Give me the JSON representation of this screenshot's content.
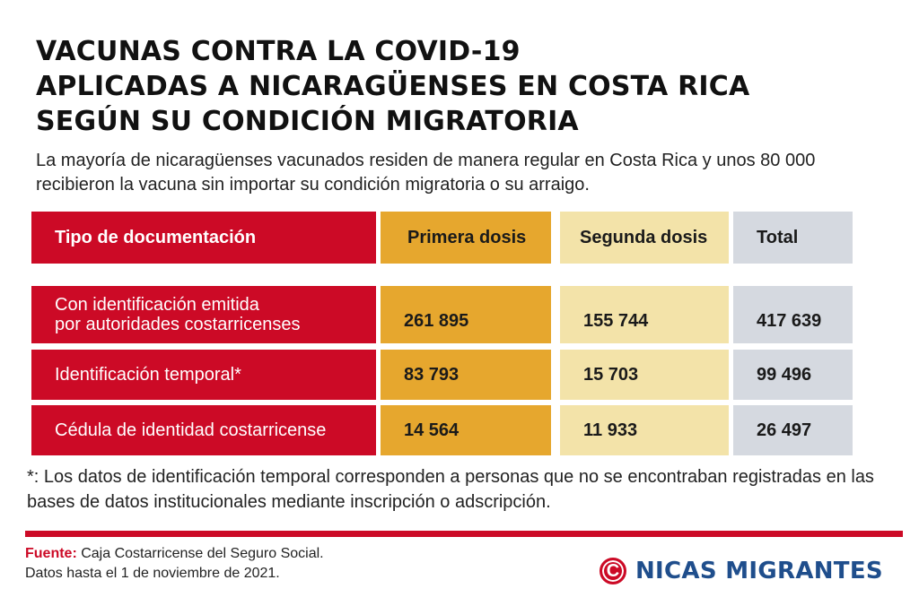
{
  "title_lines": [
    "VACUNAS CONTRA LA COVID-19",
    "APLICADAS A NICARAGÜENSES EN COSTA RICA",
    "SEGÚN SU CONDICIÓN MIGRATORIA"
  ],
  "subtitle": "La mayoría de nicaragüenses vacunados residen de manera regular en Costa Rica y unos 80 000 recibieron la vacuna sin importar su condición migratoria o su arraigo.",
  "colors": {
    "red": "#cc0a26",
    "primera": "#e6a72e",
    "segunda": "#f3e3a9",
    "total": "#d5d9e0",
    "brand_blue": "#1f4e8c"
  },
  "chart_data": {
    "type": "table",
    "headers": [
      "Tipo de documentación",
      "Primera dosis",
      "Segunda dosis",
      "Total"
    ],
    "rows": [
      {
        "label_lines": [
          "Con identificación emitida",
          "por autoridades costarricenses"
        ],
        "values": [
          "261 895",
          "155 744",
          "417 639"
        ]
      },
      {
        "label_lines": [
          "Identificación temporal*"
        ],
        "values": [
          "83 793",
          "15 703",
          "99 496"
        ]
      },
      {
        "label_lines": [
          "Cédula de identidad costarricense"
        ],
        "values": [
          "14 564",
          "11 933",
          "26 497"
        ]
      }
    ]
  },
  "note": "*: Los datos de identificación temporal corresponden a personas que no se encontraban registradas en las bases de datos institucionales mediante inscripción o adscripción.",
  "source": {
    "label": "Fuente:",
    "text": " Caja Costarricense del Seguro Social.",
    "date": "Datos hasta el 1 de noviembre de 2021."
  },
  "brand": {
    "logo_letter": "C",
    "name": "NICAS MIGRANTES",
    "logo_icon": "circle-c-logo"
  }
}
